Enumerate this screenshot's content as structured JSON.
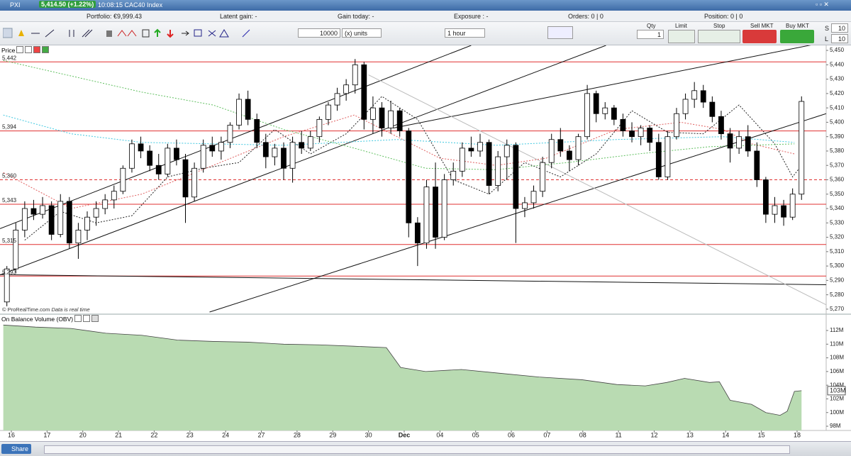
{
  "window": {
    "symbol": "PXI",
    "price_badge": "5,414.50 (+1.22%)",
    "info": "10:08:15 CAC40 Index"
  },
  "summary": {
    "portfolio": "Portfolio: €9,999.43",
    "latent_gain": "Latent gain: -",
    "gain_today": "Gain today: -",
    "exposure": "Exposure : -",
    "orders": "Orders: 0 | 0",
    "position": "Position: 0 | 0"
  },
  "toolbar": {
    "quantity": "10000",
    "units": "(x) units",
    "timeframe": "1 hour"
  },
  "order_panel": {
    "qty_label": "Qty",
    "qty": "1",
    "limit": "Limit",
    "stop": "Stop",
    "sell": "Sell MKT",
    "buy": "Buy MKT",
    "s_label": "S",
    "s_value": "10",
    "l_label": "L",
    "l_value": "10"
  },
  "footer": {
    "share": "Share"
  },
  "chart_data": [
    {
      "type": "candlestick",
      "title": "Price",
      "credit": "© ProRealTime.com",
      "note": "Data is real time",
      "up_color": "#ffffff",
      "down_color": "#000000",
      "xlim": [
        -0.77,
        91.76
      ],
      "ylim": [
        5267,
        5452.5
      ],
      "yticks": [
        {
          "value": 5270,
          "label": "5,270"
        },
        {
          "value": 5280,
          "label": "5,280"
        },
        {
          "value": 5290,
          "label": "5,290"
        },
        {
          "value": 5300,
          "label": "5,300"
        },
        {
          "value": 5310,
          "label": "5,310"
        },
        {
          "value": 5320,
          "label": "5,320"
        },
        {
          "value": 5330,
          "label": "5,330"
        },
        {
          "value": 5340,
          "label": "5,340"
        },
        {
          "value": 5350,
          "label": "5,350"
        },
        {
          "value": 5360,
          "label": "5,360"
        },
        {
          "value": 5370,
          "label": "5,370"
        },
        {
          "value": 5380,
          "label": "5,380"
        },
        {
          "value": 5390,
          "label": "5,390"
        },
        {
          "value": 5400,
          "label": "5,400"
        },
        {
          "value": 5410,
          "label": "5,410"
        },
        {
          "value": 5420,
          "label": "5,420"
        },
        {
          "value": 5430,
          "label": "5,430"
        },
        {
          "value": 5440,
          "label": "5,440"
        },
        {
          "value": 5450,
          "label": "5,450"
        }
      ],
      "open": [
        5275,
        5298,
        5325,
        5340,
        5336,
        5342,
        5322,
        5345,
        5316,
        5325,
        5334,
        5340,
        5346,
        5352,
        5368,
        5385,
        5380,
        5370,
        5364,
        5382,
        5374,
        5348,
        5368,
        5384,
        5380,
        5386,
        5398,
        5416,
        5402,
        5386,
        5376,
        5382,
        5368,
        5386,
        5382,
        5390,
        5402,
        5412,
        5420,
        5426,
        5440,
        5402,
        5410,
        5396,
        5408,
        5394,
        5330,
        5316,
        5355,
        5320,
        5360,
        5366,
        5382,
        5380,
        5386,
        5356,
        5376,
        5384,
        5340,
        5344,
        5352,
        5372,
        5388,
        5380,
        5374,
        5390,
        5420,
        5406,
        5410,
        5402,
        5394,
        5390,
        5396,
        5386,
        5362,
        5390,
        5406,
        5416,
        5422,
        5414,
        5404,
        5392,
        5382,
        5390,
        5380,
        5360,
        5336,
        5342,
        5334,
        5350
      ],
      "high": [
        5300,
        5330,
        5345,
        5346,
        5348,
        5345,
        5350,
        5348,
        5330,
        5338,
        5345,
        5350,
        5356,
        5370,
        5388,
        5390,
        5384,
        5378,
        5385,
        5388,
        5378,
        5372,
        5388,
        5390,
        5390,
        5400,
        5420,
        5422,
        5406,
        5392,
        5385,
        5386,
        5390,
        5394,
        5394,
        5404,
        5414,
        5424,
        5430,
        5444,
        5442,
        5418,
        5414,
        5415,
        5410,
        5396,
        5334,
        5360,
        5372,
        5364,
        5372,
        5386,
        5390,
        5392,
        5388,
        5380,
        5388,
        5386,
        5348,
        5356,
        5376,
        5392,
        5396,
        5384,
        5392,
        5426,
        5422,
        5414,
        5412,
        5406,
        5400,
        5398,
        5398,
        5392,
        5394,
        5410,
        5420,
        5428,
        5426,
        5418,
        5408,
        5396,
        5394,
        5398,
        5386,
        5362,
        5348,
        5346,
        5354,
        5418
      ],
      "low": [
        5272,
        5295,
        5320,
        5332,
        5333,
        5318,
        5320,
        5312,
        5305,
        5318,
        5328,
        5336,
        5340,
        5350,
        5365,
        5375,
        5366,
        5360,
        5362,
        5370,
        5330,
        5345,
        5365,
        5376,
        5374,
        5382,
        5395,
        5398,
        5382,
        5368,
        5370,
        5360,
        5358,
        5378,
        5380,
        5386,
        5398,
        5408,
        5415,
        5420,
        5395,
        5392,
        5390,
        5392,
        5390,
        5320,
        5300,
        5312,
        5312,
        5318,
        5356,
        5362,
        5376,
        5376,
        5350,
        5352,
        5360,
        5316,
        5334,
        5340,
        5348,
        5368,
        5376,
        5366,
        5370,
        5388,
        5400,
        5402,
        5398,
        5390,
        5386,
        5384,
        5380,
        5360,
        5360,
        5388,
        5402,
        5410,
        5410,
        5400,
        5388,
        5372,
        5378,
        5376,
        5355,
        5330,
        5330,
        5328,
        5332,
        5346
      ],
      "close": [
        5298,
        5325,
        5340,
        5336,
        5342,
        5322,
        5345,
        5316,
        5325,
        5334,
        5340,
        5346,
        5352,
        5368,
        5385,
        5380,
        5370,
        5364,
        5382,
        5374,
        5348,
        5368,
        5384,
        5380,
        5386,
        5398,
        5416,
        5402,
        5386,
        5376,
        5382,
        5368,
        5386,
        5382,
        5390,
        5402,
        5412,
        5420,
        5426,
        5440,
        5402,
        5410,
        5396,
        5408,
        5394,
        5330,
        5316,
        5355,
        5320,
        5360,
        5366,
        5382,
        5380,
        5386,
        5356,
        5376,
        5384,
        5340,
        5344,
        5352,
        5372,
        5388,
        5380,
        5374,
        5390,
        5420,
        5406,
        5410,
        5402,
        5394,
        5390,
        5396,
        5386,
        5362,
        5390,
        5406,
        5416,
        5422,
        5414,
        5404,
        5392,
        5382,
        5390,
        5380,
        5360,
        5336,
        5342,
        5334,
        5350,
        5414.5
      ],
      "lines": [
        {
          "color": "#222222",
          "x": [
            2,
            6,
            10,
            14,
            18,
            22,
            26,
            30,
            34,
            38,
            42,
            46,
            50,
            54,
            58,
            62,
            66,
            70,
            74,
            78,
            82,
            86,
            88,
            89
          ],
          "values": [
            5318,
            5338,
            5330,
            5335,
            5362,
            5368,
            5372,
            5395,
            5378,
            5392,
            5418,
            5402,
            5360,
            5350,
            5372,
            5362,
            5378,
            5408,
            5393,
            5392,
            5412,
            5385,
            5362,
            5370
          ]
        },
        {
          "color": "#e06060",
          "x": [
            -0.4,
            7.2,
            15.1,
            23.1,
            31,
            38.9,
            43.7,
            48.5,
            54.8,
            60.4,
            68.3,
            75.5,
            80.2,
            83.4,
            88.2
          ],
          "values": [
            5365,
            5340,
            5350,
            5370,
            5390,
            5405,
            5390,
            5375,
            5370,
            5375,
            5395,
            5400,
            5395,
            5385,
            5378
          ]
        },
        {
          "color": "#40c8e0",
          "x": [
            -0.4,
            7.2,
            15.1,
            31,
            43.7,
            54.8,
            68.3,
            80.2,
            88.2
          ],
          "values": [
            5405,
            5392,
            5386,
            5384,
            5388,
            5384,
            5388,
            5390,
            5386
          ]
        },
        {
          "color": "#60c060",
          "x": [
            -0.4,
            15.1,
            23.1,
            31,
            38.9,
            46.9,
            54.8,
            62.8,
            70.7,
            78.7,
            88.2
          ],
          "values": [
            5443,
            5421,
            5412,
            5395,
            5382,
            5368,
            5367,
            5372,
            5378,
            5383,
            5385
          ]
        }
      ],
      "level_color": "#e03030",
      "levels": [
        {
          "value": 5442,
          "label": "5,442",
          "dashed": false
        },
        {
          "value": 5394,
          "label": "5,394",
          "dashed": false
        },
        {
          "value": 5360,
          "label": "5,360",
          "dashed": true
        },
        {
          "value": 5343,
          "label": "5,343",
          "dashed": false
        },
        {
          "value": 5315,
          "label": "5,315",
          "dashed": false
        },
        {
          "value": 5293,
          "label": "5,293",
          "dashed": false
        }
      ],
      "trendlines": [
        {
          "color": "#111111",
          "x": [
            -0.77,
            52.0
          ],
          "values": [
            5326,
            5453.5
          ]
        },
        {
          "color": "#111111",
          "x": [
            -0.77,
            67.1
          ],
          "values": [
            5293.8,
            5453.5
          ]
        },
        {
          "color": "#111111",
          "x": [
            22.7,
            91.76
          ],
          "values": [
            5268,
            5406
          ]
        },
        {
          "color": "#111111",
          "x": [
            43.3,
            90.6
          ],
          "values": [
            5396,
            5454.4
          ]
        },
        {
          "color": "#111111",
          "x": [
            -0.77,
            91.76
          ],
          "values": [
            5294,
            5287
          ]
        },
        {
          "color": "#bbbbbb",
          "x": [
            40.5,
            91.76
          ],
          "values": [
            5433,
            5273
          ]
        }
      ]
    },
    {
      "type": "area",
      "title": "On Balance Volume (OBV)",
      "color": "#b9dbb2",
      "line_color": "#444444",
      "xlim": [
        -0.77,
        91.76
      ],
      "ylim": [
        97.38,
        113.04
      ],
      "x": [
        -0.4,
        3.2,
        7.2,
        11.1,
        15.1,
        19.1,
        23.1,
        27,
        31,
        35,
        38.9,
        42.5,
        44.1,
        46.9,
        50.9,
        54.8,
        59.6,
        64.4,
        68.3,
        71.5,
        73.9,
        75.9,
        78.7,
        79.8,
        81,
        83.4,
        85,
        86.6,
        87.4,
        88.2,
        89
      ],
      "values": [
        112.8,
        112.5,
        112.3,
        111.6,
        111.3,
        110.6,
        110.4,
        110.3,
        110.0,
        109.9,
        109.7,
        109.5,
        106.6,
        106.0,
        106.3,
        105.8,
        105.2,
        104.8,
        104.1,
        103.9,
        104.4,
        105.0,
        104.4,
        104.5,
        101.8,
        101.2,
        100.0,
        99.6,
        100.2,
        103.1,
        103.2
      ],
      "last_label": {
        "value": 103.2,
        "label": "103M"
      },
      "yticks": [
        {
          "value": 98,
          "label": "98M"
        },
        {
          "value": 100,
          "label": "100M"
        },
        {
          "value": 102,
          "label": "102M"
        },
        {
          "value": 104,
          "label": "104M"
        },
        {
          "value": 106,
          "label": "106M"
        },
        {
          "value": 108,
          "label": "108M"
        },
        {
          "value": 110,
          "label": "110M"
        },
        {
          "value": 112,
          "label": "112M"
        }
      ],
      "xticks": [
        {
          "value": 0.5,
          "label": "16"
        },
        {
          "value": 4.5,
          "label": "17"
        },
        {
          "value": 8.5,
          "label": "20"
        },
        {
          "value": 12.5,
          "label": "21"
        },
        {
          "value": 16.5,
          "label": "22"
        },
        {
          "value": 20.5,
          "label": "23"
        },
        {
          "value": 24.5,
          "label": "24"
        },
        {
          "value": 28.5,
          "label": "27"
        },
        {
          "value": 32.5,
          "label": "28"
        },
        {
          "value": 36.5,
          "label": "29"
        },
        {
          "value": 40.5,
          "label": "30"
        },
        {
          "value": 44.5,
          "label": "Dec"
        },
        {
          "value": 48.5,
          "label": "04"
        },
        {
          "value": 52.5,
          "label": "05"
        },
        {
          "value": 56.5,
          "label": "06"
        },
        {
          "value": 60.5,
          "label": "07"
        },
        {
          "value": 64.5,
          "label": "08"
        },
        {
          "value": 68.5,
          "label": "11"
        },
        {
          "value": 72.5,
          "label": "12"
        },
        {
          "value": 76.5,
          "label": "13"
        },
        {
          "value": 80.5,
          "label": "14"
        },
        {
          "value": 84.5,
          "label": "15"
        },
        {
          "value": 88.5,
          "label": "18"
        }
      ]
    }
  ]
}
